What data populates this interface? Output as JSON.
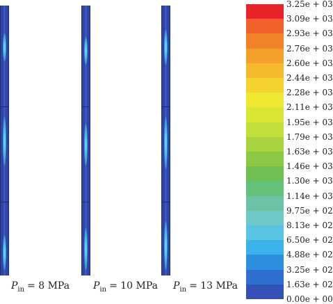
{
  "panels": [
    {
      "symbol": "P",
      "subscript": "in",
      "value": "= 8 MPa"
    },
    {
      "symbol": "P",
      "subscript": "in",
      "value": "= 10 MPa"
    },
    {
      "symbol": "P",
      "subscript": "in",
      "value": "= 13 MPa"
    }
  ],
  "legend": {
    "labels": [
      "3.25e + 03",
      "3.09e + 03",
      "2.93e + 03",
      "2.76e + 03",
      "2.60e + 03",
      "2.44e + 03",
      "2.28e + 03",
      "2.11e + 03",
      "1.95e + 03",
      "1.79e + 03",
      "1.63e + 03",
      "1.46e + 03",
      "1.30e + 03",
      "1.14e + 03",
      "9.75e + 02",
      "8.13e + 02",
      "6.50e + 02",
      "4.88e + 02",
      "3.25e + 02",
      "1.63e + 02",
      "0.00e + 00"
    ],
    "colors": [
      "#e8242b",
      "#f1622a",
      "#f0822a",
      "#f3a02b",
      "#f4ba2c",
      "#f3d42e",
      "#eee830",
      "#d9e634",
      "#c1df3a",
      "#a7d43e",
      "#8bc945",
      "#6dc051",
      "#65c07a",
      "#6cc3a3",
      "#6ec9c6",
      "#59c3e2",
      "#3bb2ea",
      "#2e8fe0",
      "#2f6fd1",
      "#3651b6"
    ]
  }
}
